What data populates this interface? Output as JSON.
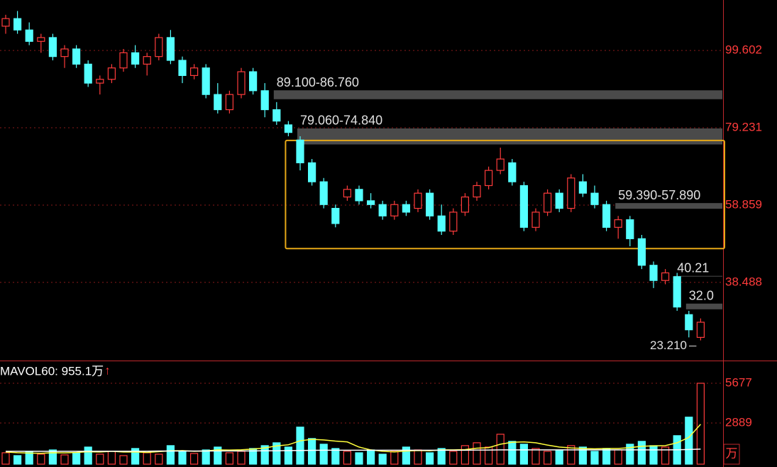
{
  "chart_data": {
    "type": "candlestick",
    "categories": [
      null,
      null,
      null,
      null,
      null,
      null,
      null,
      null,
      null,
      null,
      null,
      null,
      null,
      null,
      null,
      null,
      null,
      null,
      null,
      null,
      null,
      null,
      null,
      null,
      null,
      null,
      null,
      null,
      null,
      null,
      null,
      null,
      null,
      null,
      null,
      null,
      null,
      null,
      null,
      null,
      null,
      null,
      null,
      null,
      null,
      null,
      null,
      null,
      null,
      null,
      null,
      null,
      null,
      null,
      null,
      null,
      null,
      null,
      null,
      null
    ],
    "open": [
      106,
      108,
      105,
      102,
      103,
      98,
      100,
      96,
      91,
      92,
      95,
      99,
      96,
      98,
      103,
      97,
      93,
      95,
      88,
      84,
      88,
      94,
      89,
      84,
      80,
      76,
      70,
      65,
      58,
      61,
      63,
      60,
      59,
      56,
      59,
      58,
      62,
      56,
      52,
      57,
      61,
      64,
      68,
      70,
      64,
      53,
      57,
      62,
      58,
      65,
      62,
      59,
      53,
      55,
      50,
      43,
      39,
      40,
      30,
      24
    ],
    "high": [
      109,
      110,
      107,
      104,
      104,
      101,
      101,
      97,
      93,
      96,
      100,
      101,
      99,
      104,
      105,
      98,
      96,
      96,
      91,
      89,
      95,
      95,
      91,
      86,
      81,
      77,
      71,
      66,
      59,
      64,
      64,
      62,
      60,
      60,
      60,
      63,
      63,
      59,
      58,
      62,
      65,
      69,
      74,
      71,
      65,
      58,
      63,
      63,
      67,
      67,
      64,
      60,
      56,
      56,
      51,
      44,
      42,
      41,
      31,
      29
    ],
    "low": [
      104,
      104,
      101,
      99,
      97,
      95,
      95,
      90,
      88,
      91,
      94,
      95,
      93,
      97,
      96,
      91,
      92,
      87,
      83,
      83,
      87,
      88,
      82,
      80,
      77,
      68,
      64,
      58,
      53,
      60,
      59,
      58,
      55,
      55,
      56,
      57,
      55,
      51,
      51,
      56,
      60,
      63,
      67,
      64,
      52,
      52,
      56,
      57,
      57,
      61,
      58,
      52,
      50,
      48,
      42,
      37,
      38,
      31,
      24,
      23.21
    ],
    "close": [
      108,
      105,
      102,
      103,
      98,
      100,
      96,
      91,
      92,
      95,
      99,
      96,
      98,
      103,
      97,
      93,
      95,
      88,
      84,
      88,
      94,
      89,
      84,
      81,
      78,
      70,
      65,
      59,
      54,
      63,
      60,
      59,
      56,
      59,
      57,
      62,
      56,
      52,
      57,
      61,
      64,
      68,
      71,
      65,
      53,
      57,
      62,
      58,
      66,
      62,
      59,
      53,
      55,
      50,
      43,
      39,
      41,
      32,
      26,
      28
    ],
    "up_color": "#ff3b3b",
    "down_color": "#54ffff",
    "ylim": [
      17.9,
      112.9
    ],
    "yticks": [
      99.602,
      79.231,
      58.859,
      38.488
    ],
    "grid": true,
    "zones": [
      {
        "label": "89.100-86.760",
        "low": 86.76,
        "high": 89.1,
        "start": 23
      },
      {
        "label": "79.060-74.840",
        "low": 74.84,
        "high": 79.06,
        "start": 25
      },
      {
        "label": "59.390-57.890",
        "low": 57.89,
        "high": 59.39,
        "start": 52
      },
      {
        "label": "40.21",
        "low": 40.21,
        "high": 40.21,
        "start": 57
      },
      {
        "label": "32.0",
        "low": 31.4,
        "high": 32.9,
        "start": 58
      }
    ],
    "range_box": {
      "low": 47.4,
      "high": 75.9,
      "start": 24,
      "color": "#e6a817"
    },
    "low_marker": {
      "value": 23.21,
      "label": "23.210"
    },
    "volume": {
      "label": "MAVOL60: 955.1万",
      "arrow": "↑",
      "unit": "万",
      "ylim": [
        0,
        6922
      ],
      "yticks": [
        5677,
        2889
      ],
      "values": [
        800,
        600,
        900,
        700,
        1000,
        650,
        800,
        1200,
        700,
        900,
        600,
        1100,
        800,
        700,
        1300,
        900,
        750,
        1000,
        1200,
        800,
        900,
        1100,
        1300,
        1500,
        1200,
        2600,
        1800,
        1400,
        1100,
        900,
        800,
        1000,
        700,
        900,
        1200,
        1000,
        800,
        1100,
        900,
        1300,
        1500,
        1200,
        2100,
        1600,
        1400,
        1100,
        900,
        1000,
        1300,
        1200,
        900,
        1100,
        1000,
        1400,
        1600,
        1300,
        1200,
        2000,
        3300,
        5677
      ],
      "lines": [
        {
          "color": "#ffff3c",
          "values": [
            850,
            800,
            780,
            760,
            800,
            790,
            820,
            870,
            850,
            900,
            850,
            860,
            820,
            880,
            940,
            950,
            900,
            930,
            1000,
            990,
            1010,
            1060,
            1140,
            1280,
            1360,
            1640,
            1740,
            1700,
            1620,
            1560,
            1200,
            1000,
            900,
            860,
            920,
            960,
            940,
            1000,
            1000,
            1020,
            1120,
            1160,
            1400,
            1540,
            1560,
            1500,
            1340,
            1200,
            1140,
            1100,
            1080,
            1100,
            1100,
            1160,
            1260,
            1280,
            1300,
            1500,
            1880,
            2800
          ]
        },
        {
          "color": "#ffffff",
          "values": [
            900,
            900,
            900,
            900,
            900,
            900,
            900,
            910,
            910,
            910,
            910,
            910,
            910,
            920,
            920,
            920,
            920,
            920,
            930,
            930,
            930,
            930,
            940,
            940,
            950,
            960,
            970,
            980,
            980,
            980,
            980,
            980,
            980,
            980,
            980,
            980,
            980,
            980,
            980,
            980,
            990,
            990,
            1000,
            1000,
            1000,
            1000,
            1000,
            1000,
            1000,
            1000,
            1000,
            1000,
            1000,
            1000,
            1000,
            1000,
            1000,
            1010,
            1030,
            1060
          ]
        }
      ]
    }
  }
}
